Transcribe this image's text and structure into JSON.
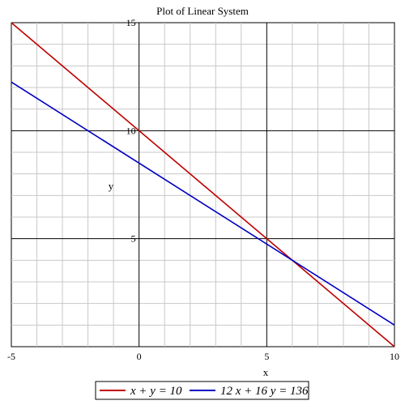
{
  "chart_data": {
    "type": "line",
    "title": "Plot of Linear System",
    "xlabel": "x",
    "ylabel": "y",
    "xlim": [
      -5,
      10
    ],
    "ylim": [
      0,
      15
    ],
    "x_ticks": [
      "-5",
      "0",
      "5",
      "10"
    ],
    "y_ticks": [
      "5",
      "10",
      "15"
    ],
    "grid": true,
    "legend_position": "bottom",
    "series": [
      {
        "name": "x + y = 10",
        "color": "#c00000",
        "x": [
          -5,
          10
        ],
        "y": [
          15,
          0
        ]
      },
      {
        "name": "12 x + 16 y = 136",
        "color": "#0000c0",
        "x": [
          -5,
          10
        ],
        "y": [
          12.25,
          1
        ]
      }
    ]
  }
}
